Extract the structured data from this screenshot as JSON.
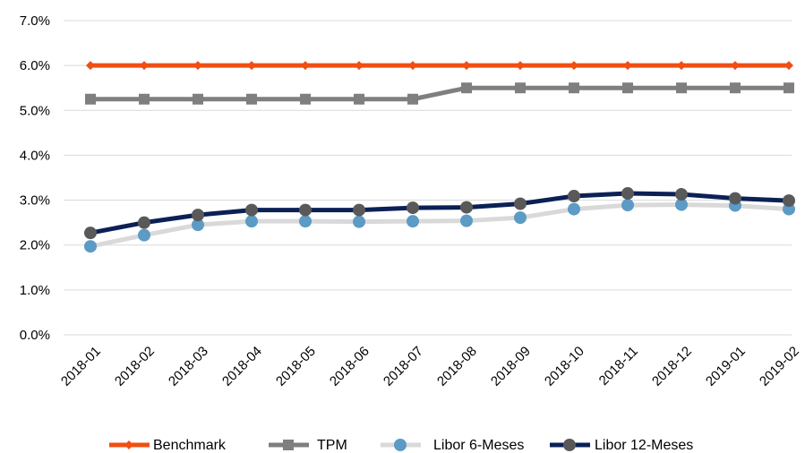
{
  "chart_data": {
    "type": "line",
    "categories": [
      "2018-01",
      "2018-02",
      "2018-03",
      "2018-04",
      "2018-05",
      "2018-06",
      "2018-07",
      "2018-08",
      "2018-09",
      "2018-10",
      "2018-11",
      "2018-12",
      "2019-01",
      "2019-02"
    ],
    "ylim": [
      0,
      7
    ],
    "yticks": [
      0,
      1,
      2,
      3,
      4,
      5,
      6,
      7
    ],
    "ytick_labels": [
      "0.0%",
      "1.0%",
      "2.0%",
      "3.0%",
      "4.0%",
      "5.0%",
      "6.0%",
      "7.0%"
    ],
    "grid": true,
    "legend_position": "bottom",
    "series": [
      {
        "name": "Benchmark",
        "color": "#f04e13",
        "marker": "diamond",
        "values": [
          6.0,
          6.0,
          6.0,
          6.0,
          6.0,
          6.0,
          6.0,
          6.0,
          6.0,
          6.0,
          6.0,
          6.0,
          6.0,
          6.0
        ]
      },
      {
        "name": "TPM",
        "color": "#7f7f7f",
        "marker": "square",
        "values": [
          5.25,
          5.25,
          5.25,
          5.25,
          5.25,
          5.25,
          5.25,
          5.5,
          5.5,
          5.5,
          5.5,
          5.5,
          5.5,
          5.5
        ]
      },
      {
        "name": "Libor 6-Meses",
        "color": "#d9d9d9",
        "marker_color": "#5b9bc5",
        "marker": "circle",
        "values": [
          1.97,
          2.22,
          2.45,
          2.53,
          2.53,
          2.52,
          2.53,
          2.54,
          2.61,
          2.8,
          2.89,
          2.9,
          2.88,
          2.8
        ]
      },
      {
        "name": "Libor 12-Meses",
        "color": "#0b2156",
        "marker_color": "#595959",
        "marker": "circle",
        "values": [
          2.27,
          2.5,
          2.67,
          2.78,
          2.78,
          2.78,
          2.83,
          2.84,
          2.92,
          3.09,
          3.15,
          3.13,
          3.04,
          2.99
        ]
      }
    ]
  }
}
